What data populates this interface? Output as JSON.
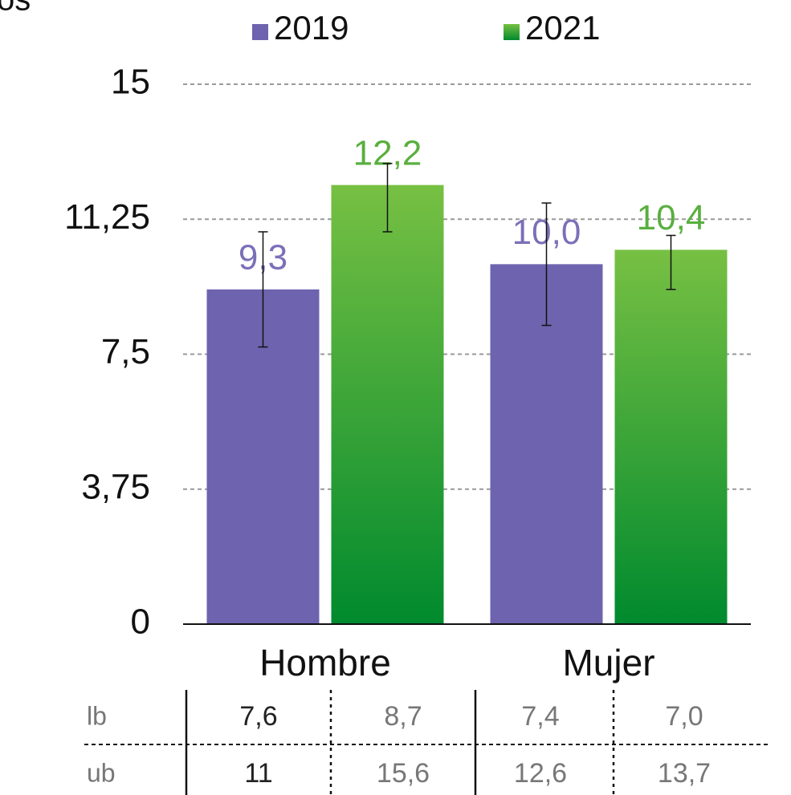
{
  "chart_data": {
    "type": "bar",
    "ylabel": "os",
    "categories": [
      "Hombre",
      "Mujer"
    ],
    "series": [
      {
        "name": "2019",
        "color": "#6e63ae",
        "label_color": "#7a70b8",
        "values": [
          9.3,
          10.0
        ],
        "value_labels": [
          "9,3",
          "10,0"
        ],
        "error_low": [
          7.7,
          8.3
        ],
        "error_high": [
          10.9,
          11.7
        ]
      },
      {
        "name": "2021",
        "color": "#5cb33a",
        "gradient": [
          "#77c043",
          "#008a2e"
        ],
        "label_color": "#5aaf3f",
        "values": [
          12.2,
          10.4
        ],
        "value_labels": [
          "12,2",
          "10,4"
        ],
        "error_low": [
          10.9,
          9.3
        ],
        "error_high": [
          12.8,
          10.8
        ]
      }
    ],
    "ylim": [
      0,
      15
    ],
    "yticks": [
      0,
      {
        "value": 3.75,
        "label": "3,75"
      },
      {
        "value": 7.5,
        "label": "7,5"
      },
      {
        "value": 11.25,
        "label": "11,25"
      },
      15
    ],
    "grid": true,
    "legend": "top"
  },
  "table": {
    "rows": [
      {
        "label": "lb",
        "cells": [
          "7,6",
          "8,7",
          "7,4",
          "7,0"
        ]
      },
      {
        "label": "ub",
        "cells": [
          "11",
          "15,6",
          "12,6",
          "13,7"
        ]
      }
    ]
  }
}
